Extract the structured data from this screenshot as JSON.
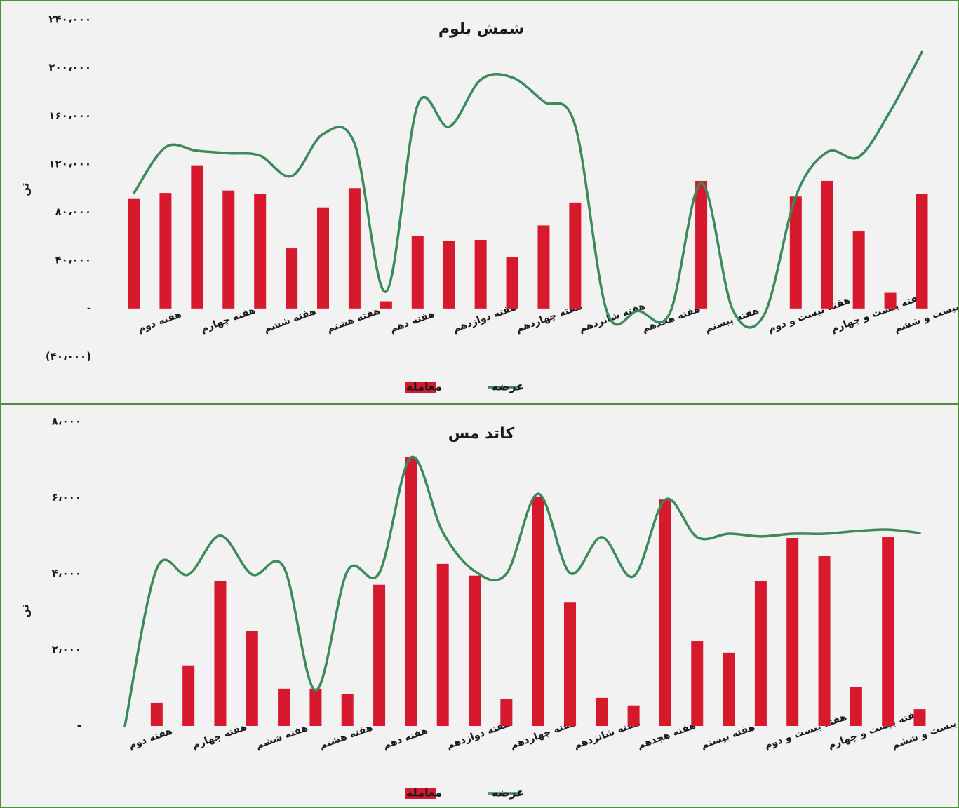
{
  "chart_data": [
    {
      "type": "bar",
      "title": "شمش بلوم",
      "y_label": "تن",
      "categories": [
        "هفته دوم",
        null,
        "هفته چهارم",
        null,
        "هفته ششم",
        null,
        "هفته هشتم",
        null,
        "هفته دهم",
        null,
        "هفته دوازدهم",
        null,
        "هفته چهاردهم",
        null,
        "هفته شانزدهم",
        null,
        "هفته هجدهم",
        null,
        "هفته بیستم",
        null,
        "هفته بیست و دوم",
        null,
        "هفته بیست و چهارم",
        null,
        "هفته بیست و ششم",
        null
      ],
      "series": [
        {
          "name": "معامله",
          "type": "bar",
          "color": "#d7192d",
          "values": [
            91000,
            96000,
            119000,
            98000,
            95000,
            50000,
            84000,
            100000,
            6000,
            60000,
            56000,
            57000,
            43000,
            69000,
            88000,
            0,
            0,
            0,
            106000,
            0,
            0,
            93000,
            106000,
            64000,
            13000,
            95000
          ]
        },
        {
          "name": "عرضه",
          "type": "line",
          "color": "#3a8a5c",
          "values": [
            96000,
            134000,
            131000,
            129000,
            127000,
            110000,
            145000,
            137000,
            14000,
            169000,
            151000,
            190000,
            192000,
            172000,
            152000,
            -2000,
            -2000,
            -4000,
            104000,
            -1000,
            -5000,
            93000,
            130000,
            126000,
            164000,
            213000
          ]
        }
      ],
      "ylim": [
        -40000,
        240000
      ],
      "yticks": [
        {
          "value": -40000,
          "label": "(۴۰،۰۰۰)"
        },
        {
          "value": 0,
          "label": "-"
        },
        {
          "value": 40000,
          "label": "۴۰،۰۰۰"
        },
        {
          "value": 80000,
          "label": "۸۰،۰۰۰"
        },
        {
          "value": 120000,
          "label": "۱۲۰،۰۰۰"
        },
        {
          "value": 160000,
          "label": "۱۶۰،۰۰۰"
        },
        {
          "value": 200000,
          "label": "۲۰۰،۰۰۰"
        },
        {
          "value": 240000,
          "label": "۲۴۰،۰۰۰"
        }
      ],
      "grid": false,
      "legend": "bottom"
    },
    {
      "type": "bar",
      "title": "کاتد مس",
      "y_label": "تن",
      "categories": [
        "هفته دوم",
        null,
        "هفته چهارم",
        null,
        "هفته ششم",
        null,
        "هفته هشتم",
        null,
        "هفته دهم",
        null,
        "هفته دوازدهم",
        null,
        "هفته چهاردهم",
        null,
        "هفته شانزدهم",
        null,
        "هفته هجدهم",
        null,
        "هفته بیستم",
        null,
        "هفته بیست و دوم",
        null,
        "هفته بیست و چهارم",
        null,
        "هفته بیست و ششم",
        null
      ],
      "series": [
        {
          "name": "معامله",
          "type": "bar",
          "color": "#d7192d",
          "values": [
            0,
            610,
            1590,
            3800,
            2490,
            980,
            980,
            830,
            3710,
            7060,
            4260,
            3950,
            700,
            6030,
            3240,
            740,
            540,
            5950,
            2230,
            1920,
            3800,
            4940,
            4460,
            1030,
            4960,
            440
          ]
        },
        {
          "name": "عرضه",
          "type": "line",
          "color": "#3a8a5c",
          "values": [
            0,
            4130,
            3980,
            5000,
            3980,
            4170,
            940,
            4070,
            4020,
            7060,
            5090,
            4070,
            4000,
            6100,
            4020,
            4960,
            3930,
            5950,
            4960,
            5050,
            4980,
            5050,
            5050,
            5120,
            5160,
            5070
          ]
        }
      ],
      "ylim": [
        0,
        8000
      ],
      "yticks": [
        {
          "value": 0,
          "label": "-"
        },
        {
          "value": 2000,
          "label": "۲،۰۰۰"
        },
        {
          "value": 4000,
          "label": "۴،۰۰۰"
        },
        {
          "value": 6000,
          "label": "۶،۰۰۰"
        },
        {
          "value": 8000,
          "label": "۸،۰۰۰"
        }
      ],
      "grid": false,
      "legend": "bottom"
    }
  ]
}
